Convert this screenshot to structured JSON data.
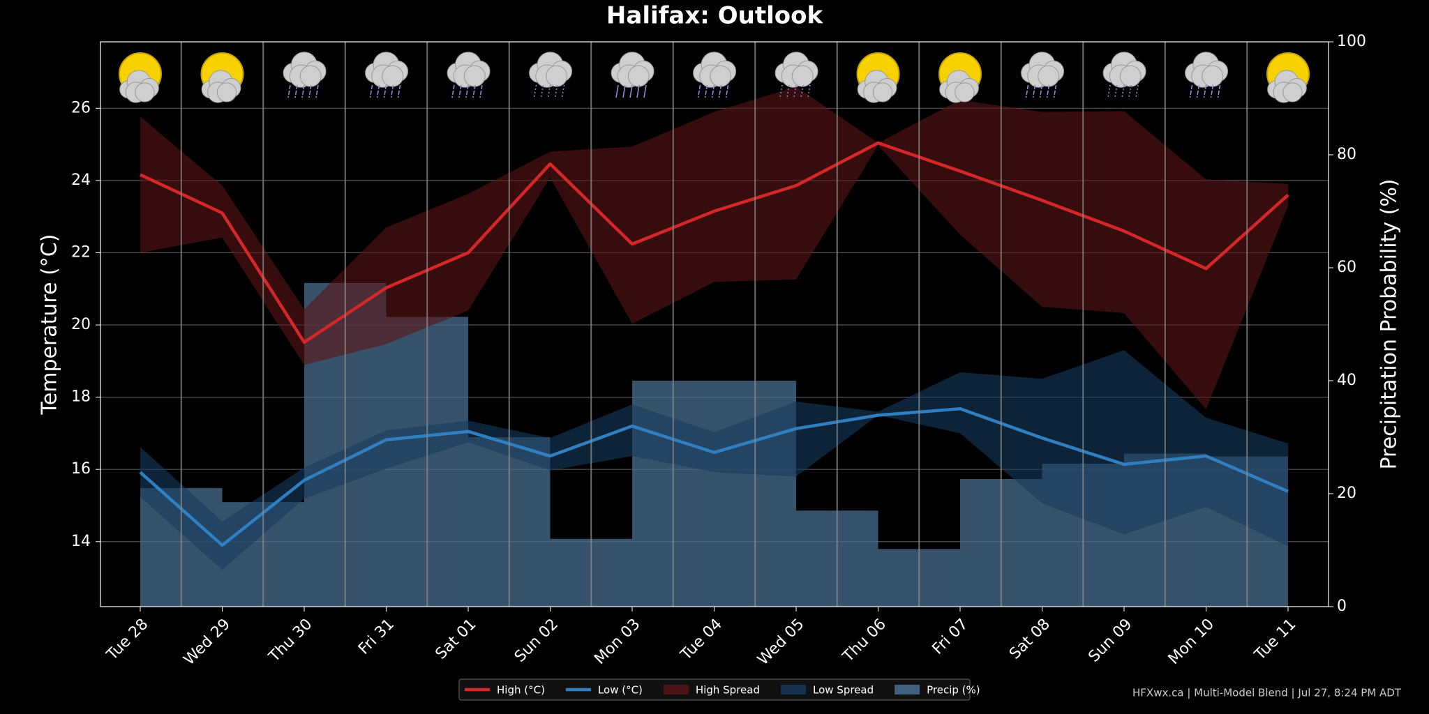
{
  "chart_data": {
    "type": "line",
    "title": "Halifax: Outlook",
    "categories": [
      "Tue 28",
      "Wed 29",
      "Thu 30",
      "Fri 31",
      "Sat 01",
      "Sun 02",
      "Mon 03",
      "Tue 04",
      "Wed 05",
      "Thu 06",
      "Fri 07",
      "Sat 08",
      "Sun 09",
      "Mon 10",
      "Tue 11"
    ],
    "ylabel": "Temperature (°C)",
    "y2label": "Precipitation Probability (%)",
    "ylim": [
      12.2,
      27.84
    ],
    "yticks": [
      14,
      16,
      18,
      20,
      22,
      24,
      26
    ],
    "y2lim": [
      0,
      100
    ],
    "y2ticks": [
      0,
      20,
      40,
      60,
      80,
      100
    ],
    "grid": true,
    "legend": "lower center",
    "series": [
      {
        "name": "High (°C)",
        "type": "line",
        "color": "#d62728",
        "values": [
          24.16,
          23.1,
          19.52,
          21.03,
          22.0,
          24.46,
          22.24,
          23.15,
          23.86,
          25.04,
          24.26,
          23.45,
          22.6,
          21.56,
          23.6
        ]
      },
      {
        "name": "Low (°C)",
        "type": "line",
        "color": "#2f7fc1",
        "values": [
          15.92,
          13.9,
          15.7,
          16.82,
          17.05,
          16.37,
          17.2,
          16.47,
          17.13,
          17.5,
          17.68,
          16.87,
          16.14,
          16.37,
          15.39
        ]
      },
      {
        "name": "High Spread",
        "type": "band",
        "color": "#5a1414",
        "upper": [
          25.77,
          23.86,
          20.43,
          22.7,
          23.63,
          24.8,
          24.94,
          25.9,
          26.6,
          25.04,
          26.23,
          25.9,
          25.92,
          24.03,
          23.9
        ],
        "lower": [
          22.0,
          22.42,
          18.89,
          19.47,
          20.4,
          24.08,
          20.03,
          21.19,
          21.26,
          24.97,
          22.5,
          20.5,
          20.33,
          17.66,
          23.3
        ]
      },
      {
        "name": "Low Spread",
        "type": "band",
        "color": "#163a5c",
        "upper": [
          16.62,
          14.56,
          16.05,
          17.08,
          17.35,
          16.87,
          17.8,
          17.03,
          17.88,
          17.6,
          18.69,
          18.51,
          19.3,
          17.43,
          16.72
        ],
        "lower": [
          15.24,
          13.22,
          15.19,
          16.02,
          16.75,
          15.97,
          16.37,
          15.92,
          15.8,
          17.5,
          17.0,
          15.06,
          14.2,
          14.96,
          13.87
        ]
      },
      {
        "name": "Precip (%)",
        "type": "bar",
        "axis": "y2",
        "color": "#4a6f90",
        "values": [
          21,
          18.5,
          57.3,
          51.3,
          30,
          12,
          40,
          40,
          17,
          10.2,
          22.6,
          25.3,
          27.1,
          26.6,
          null
        ]
      }
    ],
    "footer": "HFXwx.ca | Multi-Model Blend | Jul 27, 8:24 PM ADT"
  }
}
